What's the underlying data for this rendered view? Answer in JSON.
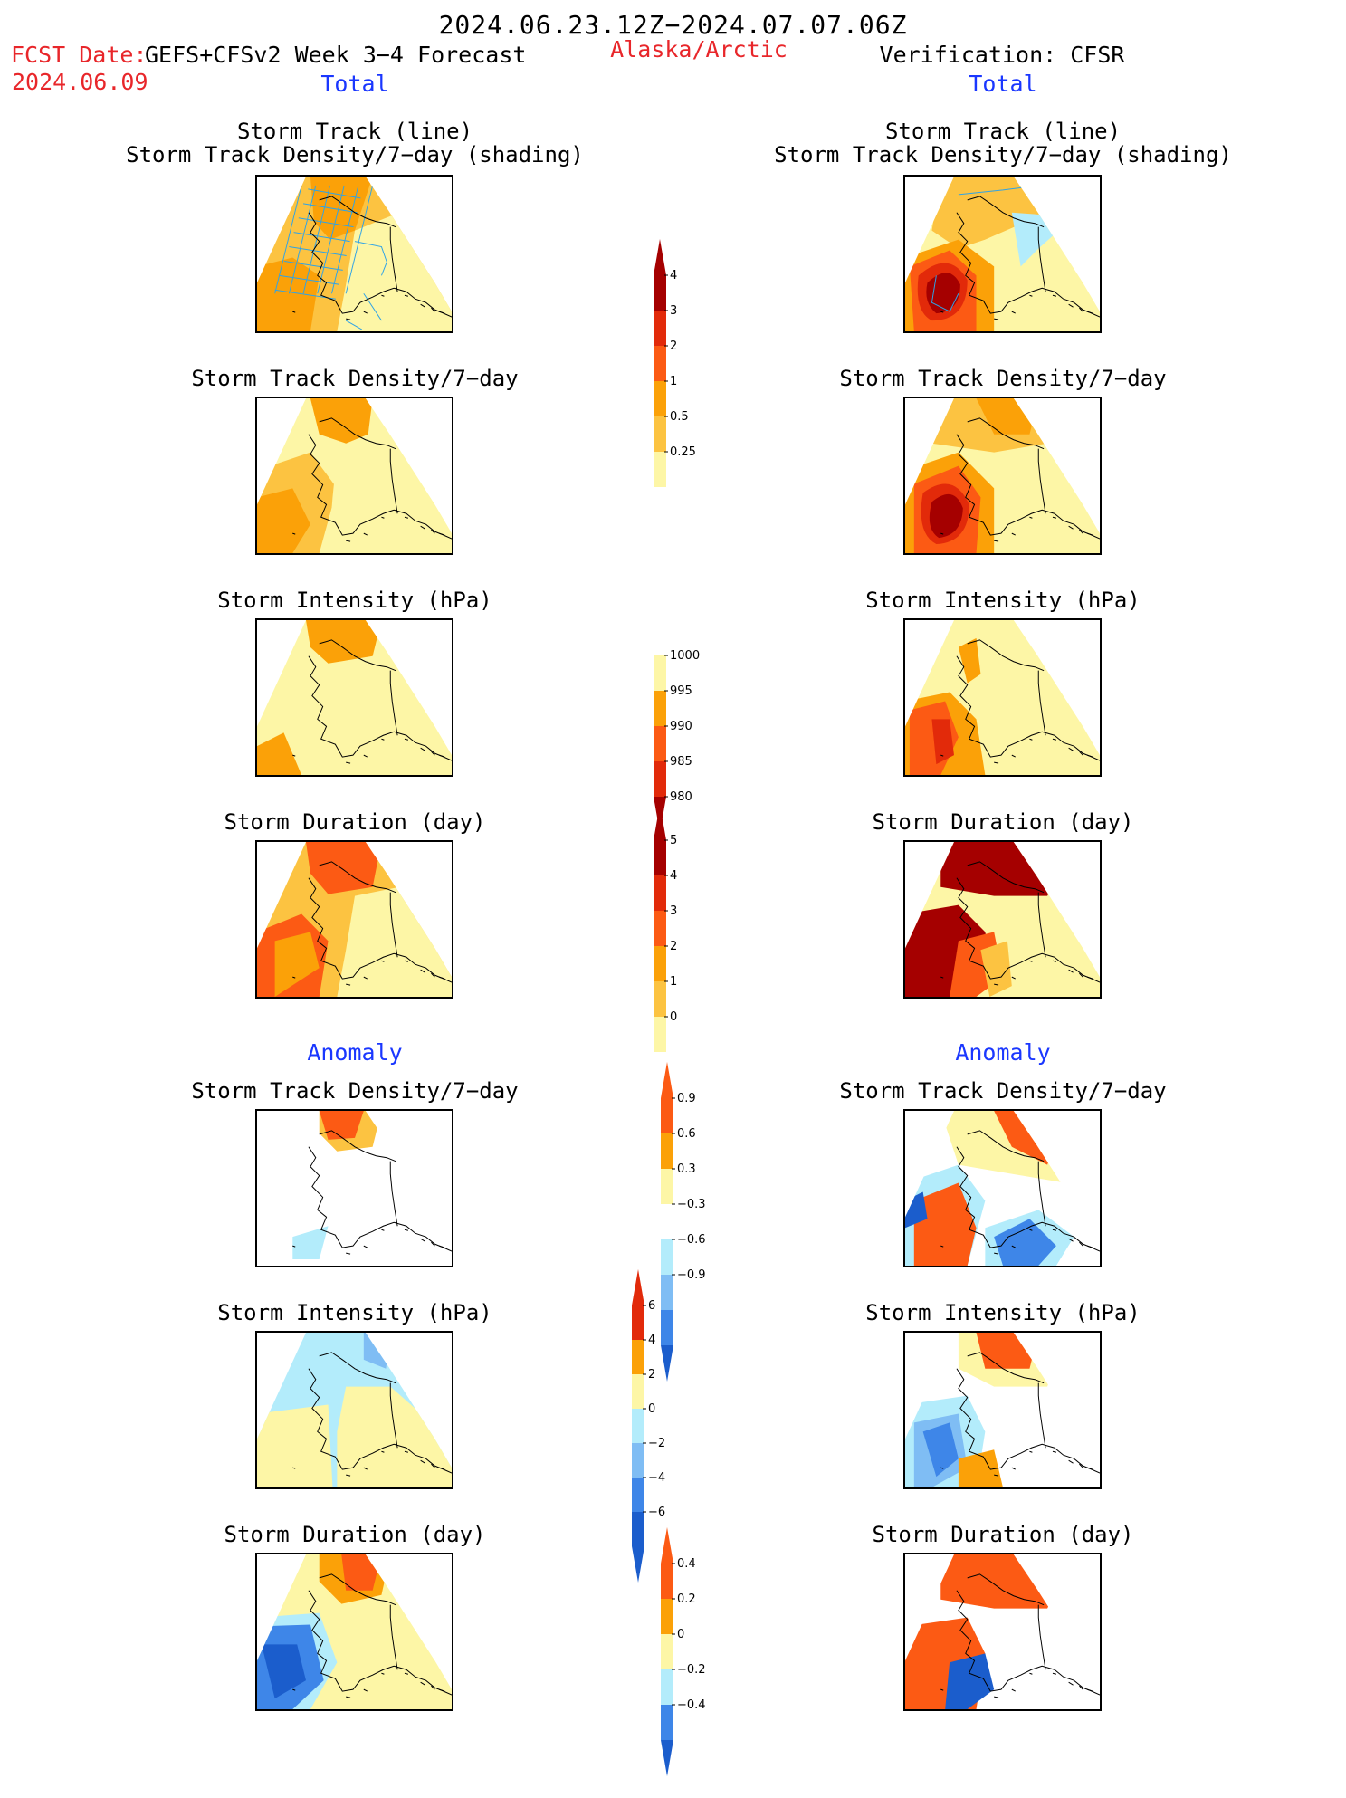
{
  "header": {
    "time_range": "2024.06.23.12Z−2024.07.07.06Z",
    "fcst_date_label": "FCST Date:",
    "fcst_date": "2024.06.09",
    "forecast_name": "GEFS+CFSv2 Week 3−4 Forecast",
    "region": "Alaska/Arctic",
    "verification": "Verification: CFSR"
  },
  "sections": {
    "total": "Total",
    "anomaly": "Anomaly"
  },
  "panel_titles": {
    "track_line": "Storm Track (line)",
    "track_density_shading": "Storm Track Density/7−day (shading)",
    "track_density": "Storm Track Density/7−day",
    "intensity": "Storm Intensity (hPa)",
    "duration": "Storm Duration (day)"
  },
  "colorbars": {
    "density_total": [
      "4",
      "3",
      "2",
      "1",
      "0.5",
      "0.25"
    ],
    "intensity_total": [
      "1000",
      "995",
      "990",
      "985",
      "980"
    ],
    "duration_total": [
      "5",
      "4",
      "3",
      "2",
      "1",
      "0"
    ],
    "density_anom": [
      "0.9",
      "0.6",
      "0.3",
      "−0.3",
      "−0.6",
      "−0.9"
    ],
    "intensity_anom": [
      "6",
      "4",
      "2",
      "0",
      "−2",
      "−4",
      "−6"
    ],
    "duration_anom": [
      "0.4",
      "0.2",
      "0",
      "−0.2",
      "−0.4"
    ]
  },
  "colors": {
    "dark_red": "#a50000",
    "red": "#e22a0a",
    "orange_red": "#fc5a14",
    "orange": "#fba108",
    "light_orange": "#fcc341",
    "pale_yellow": "#fdf6a6",
    "pale_blue": "#b3ecfb",
    "light_blue": "#7fbdf4",
    "blue": "#3e86e8",
    "dark_blue": "#1b5dcc",
    "track_line": "#2fa3e6"
  }
}
